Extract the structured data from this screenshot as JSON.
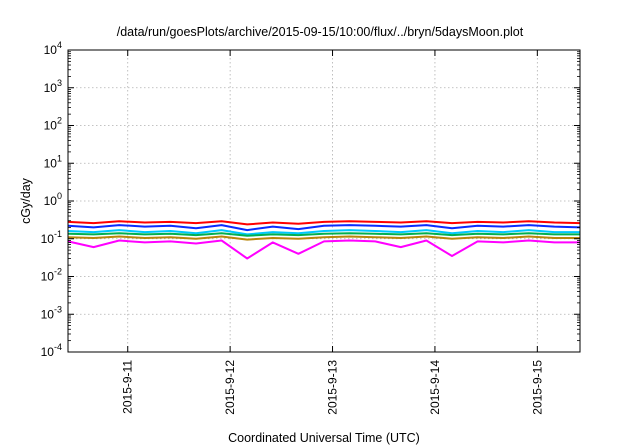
{
  "chart_data": {
    "type": "line",
    "title": "/data/run/goesPlots/archive/2015-09-15/10:00/flux/../bryn/5daysMoon.plot",
    "xlabel": "Coordinated Universal Time (UTC)",
    "ylabel": "cGy/day",
    "yscale": "log",
    "ylim": [
      0.0001,
      10000
    ],
    "xlim": [
      "2015-09-10 10:00",
      "2015-09-15 10:00"
    ],
    "grid": true,
    "legend": "none",
    "y_ticks": [
      {
        "base": "10",
        "exp": "-4",
        "value": 0.0001
      },
      {
        "base": "10",
        "exp": "-3",
        "value": 0.001
      },
      {
        "base": "10",
        "exp": "-2",
        "value": 0.01
      },
      {
        "base": "10",
        "exp": "-1",
        "value": 0.1
      },
      {
        "base": "10",
        "exp": "0",
        "value": 1
      },
      {
        "base": "10",
        "exp": "1",
        "value": 10
      },
      {
        "base": "10",
        "exp": "2",
        "value": 100
      },
      {
        "base": "10",
        "exp": "3",
        "value": 1000
      },
      {
        "base": "10",
        "exp": "4",
        "value": 10000
      }
    ],
    "x_ticks": [
      {
        "label": "2015-9-11",
        "value": "2015-09-11 00:00"
      },
      {
        "label": "2015-9-12",
        "value": "2015-09-12 00:00"
      },
      {
        "label": "2015-9-13",
        "value": "2015-09-13 00:00"
      },
      {
        "label": "2015-9-14",
        "value": "2015-09-14 00:00"
      },
      {
        "label": "2015-9-15",
        "value": "2015-09-15 00:00"
      }
    ],
    "x": [
      "2015-09-10 10:00",
      "2015-09-10 16:00",
      "2015-09-10 22:00",
      "2015-09-11 04:00",
      "2015-09-11 10:00",
      "2015-09-11 16:00",
      "2015-09-11 22:00",
      "2015-09-12 04:00",
      "2015-09-12 10:00",
      "2015-09-12 16:00",
      "2015-09-12 22:00",
      "2015-09-13 04:00",
      "2015-09-13 10:00",
      "2015-09-13 16:00",
      "2015-09-13 22:00",
      "2015-09-14 04:00",
      "2015-09-14 10:00",
      "2015-09-14 16:00",
      "2015-09-14 22:00",
      "2015-09-15 04:00",
      "2015-09-15 10:00"
    ],
    "series": [
      {
        "color": "#ff0000",
        "values": [
          0.28,
          0.26,
          0.29,
          0.27,
          0.28,
          0.26,
          0.29,
          0.24,
          0.27,
          0.25,
          0.28,
          0.29,
          0.28,
          0.27,
          0.29,
          0.26,
          0.28,
          0.27,
          0.29,
          0.27,
          0.26
        ]
      },
      {
        "color": "#0a2bff",
        "values": [
          0.22,
          0.2,
          0.23,
          0.21,
          0.22,
          0.19,
          0.23,
          0.17,
          0.21,
          0.18,
          0.22,
          0.23,
          0.22,
          0.21,
          0.23,
          0.19,
          0.22,
          0.21,
          0.23,
          0.21,
          0.2
        ]
      },
      {
        "color": "#00c8ff",
        "values": [
          0.16,
          0.15,
          0.17,
          0.15,
          0.16,
          0.14,
          0.17,
          0.13,
          0.15,
          0.14,
          0.16,
          0.17,
          0.16,
          0.15,
          0.17,
          0.14,
          0.16,
          0.15,
          0.17,
          0.15,
          0.15
        ]
      },
      {
        "color": "#00b050",
        "values": [
          0.135,
          0.13,
          0.14,
          0.13,
          0.135,
          0.125,
          0.14,
          0.12,
          0.13,
          0.125,
          0.135,
          0.14,
          0.135,
          0.13,
          0.14,
          0.125,
          0.135,
          0.13,
          0.14,
          0.13,
          0.13
        ]
      },
      {
        "color": "#b8860b",
        "values": [
          0.11,
          0.105,
          0.115,
          0.105,
          0.11,
          0.1,
          0.115,
          0.095,
          0.105,
          0.1,
          0.11,
          0.115,
          0.11,
          0.105,
          0.115,
          0.1,
          0.11,
          0.105,
          0.115,
          0.105,
          0.105
        ]
      },
      {
        "color": "#ff00ff",
        "values": [
          0.085,
          0.06,
          0.09,
          0.08,
          0.085,
          0.075,
          0.09,
          0.03,
          0.08,
          0.04,
          0.085,
          0.09,
          0.085,
          0.06,
          0.09,
          0.035,
          0.085,
          0.08,
          0.09,
          0.08,
          0.08
        ]
      }
    ]
  }
}
